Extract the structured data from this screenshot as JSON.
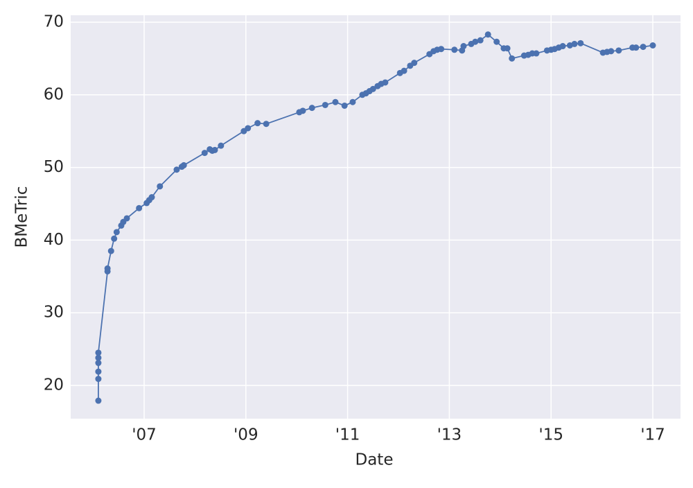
{
  "chart_data": {
    "type": "line",
    "xlabel": "Date",
    "ylabel": "BMeTric",
    "color": "#4c72b0",
    "grid": true,
    "x": [
      2006.1,
      2006.1,
      2006.1,
      2006.1,
      2006.1,
      2006.1,
      2006.28,
      2006.28,
      2006.35,
      2006.41,
      2006.46,
      2006.55,
      2006.59,
      2006.66,
      2006.9,
      2007.05,
      2007.1,
      2007.15,
      2007.31,
      2007.64,
      2007.74,
      2007.78,
      2008.19,
      2008.29,
      2008.34,
      2008.39,
      2008.51,
      2008.96,
      2009.04,
      2009.23,
      2009.4,
      2010.05,
      2010.12,
      2010.3,
      2010.56,
      2010.76,
      2010.94,
      2011.1,
      2011.29,
      2011.36,
      2011.43,
      2011.5,
      2011.59,
      2011.66,
      2011.74,
      2012.03,
      2012.11,
      2012.23,
      2012.31,
      2012.61,
      2012.69,
      2012.76,
      2012.84,
      2013.1,
      2013.25,
      2013.28,
      2013.43,
      2013.51,
      2013.61,
      2013.76,
      2013.93,
      2014.07,
      2014.14,
      2014.23,
      2014.47,
      2014.55,
      2014.63,
      2014.71,
      2014.92,
      2015.0,
      2015.07,
      2015.15,
      2015.23,
      2015.37,
      2015.46,
      2015.58,
      2016.02,
      2016.1,
      2016.18,
      2016.33,
      2016.6,
      2016.67,
      2016.81,
      2017.0
    ],
    "values": [
      17.9,
      20.9,
      21.9,
      23.1,
      23.8,
      24.5,
      35.7,
      36.1,
      38.5,
      40.2,
      41.1,
      42.0,
      42.5,
      43.0,
      44.4,
      45.1,
      45.5,
      45.9,
      47.4,
      49.7,
      50.1,
      50.3,
      52.0,
      52.5,
      52.3,
      52.4,
      53.0,
      55.0,
      55.4,
      56.1,
      56.0,
      57.6,
      57.8,
      58.2,
      58.6,
      59.0,
      58.5,
      59.0,
      60.0,
      60.2,
      60.5,
      60.8,
      61.2,
      61.5,
      61.7,
      63.0,
      63.3,
      64.0,
      64.4,
      65.6,
      66.0,
      66.2,
      66.3,
      66.2,
      66.1,
      66.7,
      67.0,
      67.3,
      67.5,
      68.3,
      67.3,
      66.4,
      66.4,
      65.0,
      65.4,
      65.5,
      65.7,
      65.7,
      66.1,
      66.2,
      66.3,
      66.5,
      66.7,
      66.8,
      67.0,
      67.1,
      65.8,
      65.9,
      66.0,
      66.1,
      66.5,
      66.5,
      66.6,
      66.8
    ],
    "xlim": [
      2005.556,
      2017.545
    ],
    "xticks": [
      {
        "value": 2007,
        "label": "'07"
      },
      {
        "value": 2009,
        "label": "'09"
      },
      {
        "value": 2011,
        "label": "'11"
      },
      {
        "value": 2013,
        "label": "'13"
      },
      {
        "value": 2015,
        "label": "'15"
      },
      {
        "value": 2017,
        "label": "'17"
      }
    ],
    "ylim": [
      15.42,
      70.95
    ],
    "yticks": [
      20,
      30,
      40,
      50,
      60,
      70
    ]
  }
}
